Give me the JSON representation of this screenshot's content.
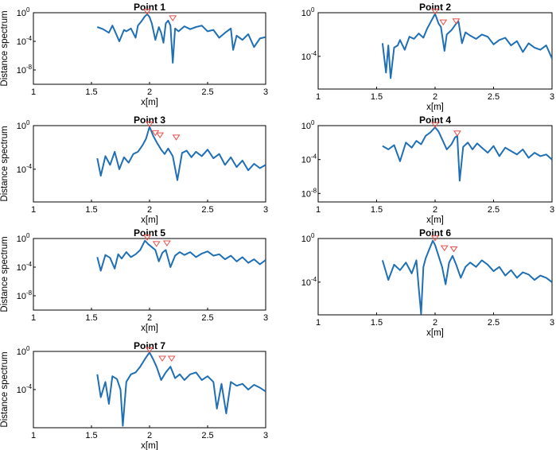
{
  "figure": {
    "series_color": "#1f6fb5",
    "marker_color": "#e8504a",
    "axis_color": "#000000"
  },
  "chart_data": [
    {
      "type": "line",
      "title": "Point 1",
      "xlabel": "x[m]",
      "ylabel": "Distance spectrum",
      "xlim": [
        1,
        3
      ],
      "xticks": [
        "1",
        "1.5",
        "2",
        "2.5",
        "3"
      ],
      "ylim": [
        -10,
        0
      ],
      "y_scale": "log",
      "yticks": [
        {
          "base": "10",
          "exp": "0",
          "value": 0
        },
        {
          "base": "10",
          "exp": "-4",
          "value": -4
        },
        {
          "base": "10",
          "exp": "-8",
          "value": -8
        }
      ],
      "grid": false,
      "series": [
        {
          "x": [
            1.55,
            1.6,
            1.65,
            1.68,
            1.7,
            1.74,
            1.78,
            1.8,
            1.84,
            1.88,
            1.9,
            1.93,
            1.96,
            1.98,
            2.0,
            2.02,
            2.05,
            2.08,
            2.1,
            2.12,
            2.14,
            2.16,
            2.18,
            2.2,
            2.22,
            2.25,
            2.3,
            2.35,
            2.4,
            2.45,
            2.5,
            2.55,
            2.6,
            2.65,
            2.7,
            2.72,
            2.75,
            2.8,
            2.85,
            2.9,
            2.95,
            3.0
          ],
          "y": [
            -2.0,
            -2.3,
            -2.8,
            -1.8,
            -2.5,
            -4.0,
            -2.4,
            -2.6,
            -2.2,
            -3.5,
            -1.8,
            -1.2,
            -0.5,
            -0.2,
            -0.6,
            -1.5,
            -3.8,
            -2.0,
            -2.8,
            -4.2,
            -1.5,
            -1.1,
            -1.8,
            -7.0,
            -2.2,
            -2.6,
            -1.9,
            -2.3,
            -2.0,
            -1.8,
            -2.6,
            -2.4,
            -3.5,
            -2.8,
            -2.2,
            -5.2,
            -3.2,
            -3.8,
            -3.0,
            -4.8,
            -3.6,
            -3.4
          ]
        }
      ],
      "peaks": [
        {
          "x": 1.98,
          "y": -0.2
        },
        {
          "x": 2.2,
          "y": -1.1
        }
      ]
    },
    {
      "type": "line",
      "title": "Point 2",
      "xlabel": "x[m]",
      "ylabel": "",
      "xlim": [
        1,
        3
      ],
      "xticks": [
        "1",
        "1.5",
        "2",
        "2.5",
        "3"
      ],
      "ylim": [
        -7,
        0
      ],
      "y_scale": "log",
      "yticks": [
        {
          "base": "10",
          "exp": "0",
          "value": 0
        },
        {
          "base": "10",
          "exp": "-4",
          "value": -4
        }
      ],
      "grid": false,
      "series": [
        {
          "x": [
            1.55,
            1.58,
            1.6,
            1.62,
            1.65,
            1.68,
            1.7,
            1.74,
            1.78,
            1.82,
            1.86,
            1.9,
            1.93,
            1.96,
            2.0,
            2.03,
            2.05,
            2.08,
            2.1,
            2.14,
            2.18,
            2.2,
            2.23,
            2.26,
            2.3,
            2.35,
            2.4,
            2.45,
            2.5,
            2.55,
            2.6,
            2.65,
            2.7,
            2.75,
            2.8,
            2.85,
            2.9,
            2.95,
            3.0
          ],
          "y": [
            -2.8,
            -5.5,
            -3.0,
            -6.0,
            -3.2,
            -3.0,
            -2.5,
            -3.4,
            -2.2,
            -2.4,
            -1.9,
            -2.3,
            -1.5,
            -0.9,
            -0.1,
            -1.0,
            -1.3,
            -3.5,
            -2.0,
            -1.6,
            -1.0,
            -0.8,
            -2.8,
            -1.8,
            -2.1,
            -2.4,
            -2.0,
            -2.2,
            -2.9,
            -2.5,
            -2.3,
            -3.0,
            -2.6,
            -3.6,
            -2.8,
            -3.2,
            -3.4,
            -3.0,
            -4.2
          ]
        }
      ],
      "peaks": [
        {
          "x": 2.0,
          "y": -0.1
        },
        {
          "x": 2.07,
          "y": -1.1
        },
        {
          "x": 2.18,
          "y": -1.0
        }
      ]
    },
    {
      "type": "line",
      "title": "Point 3",
      "xlabel": "x[m]",
      "ylabel": "Distance spectrum",
      "xlim": [
        1,
        3
      ],
      "xticks": [
        "1",
        "1.5",
        "2",
        "2.5",
        "3"
      ],
      "ylim": [
        -7,
        0
      ],
      "y_scale": "log",
      "yticks": [
        {
          "base": "10",
          "exp": "0",
          "value": 0
        },
        {
          "base": "10",
          "exp": "-4",
          "value": -4
        }
      ],
      "grid": false,
      "series": [
        {
          "x": [
            1.55,
            1.58,
            1.62,
            1.66,
            1.7,
            1.74,
            1.78,
            1.82,
            1.86,
            1.9,
            1.94,
            1.97,
            2.0,
            2.03,
            2.06,
            2.1,
            2.13,
            2.16,
            2.2,
            2.24,
            2.28,
            2.32,
            2.36,
            2.4,
            2.45,
            2.5,
            2.55,
            2.6,
            2.65,
            2.7,
            2.75,
            2.8,
            2.85,
            2.9,
            2.95,
            3.0
          ],
          "y": [
            -3.0,
            -4.6,
            -2.8,
            -3.6,
            -2.4,
            -4.0,
            -2.9,
            -3.4,
            -2.6,
            -2.4,
            -1.8,
            -1.2,
            -0.1,
            -0.9,
            -1.5,
            -2.2,
            -2.6,
            -2.1,
            -2.8,
            -5.0,
            -2.5,
            -2.3,
            -2.9,
            -2.4,
            -2.8,
            -2.2,
            -3.0,
            -2.6,
            -3.6,
            -2.9,
            -3.8,
            -3.2,
            -4.1,
            -3.5,
            -3.9,
            -3.6
          ]
        }
      ],
      "peaks": [
        {
          "x": 2.0,
          "y": -0.1
        },
        {
          "x": 2.05,
          "y": -0.9
        },
        {
          "x": 2.09,
          "y": -1.1
        },
        {
          "x": 2.23,
          "y": -1.3
        }
      ]
    },
    {
      "type": "line",
      "title": "Point 4",
      "xlabel": "x[m]",
      "ylabel": "",
      "xlim": [
        1,
        3
      ],
      "xticks": [
        "1",
        "1.5",
        "2",
        "2.5",
        "3"
      ],
      "ylim": [
        -9,
        0
      ],
      "y_scale": "log",
      "yticks": [
        {
          "base": "10",
          "exp": "0",
          "value": 0
        },
        {
          "base": "10",
          "exp": "-4",
          "value": -4
        },
        {
          "base": "10",
          "exp": "-8",
          "value": -8
        }
      ],
      "grid": false,
      "series": [
        {
          "x": [
            1.55,
            1.6,
            1.65,
            1.7,
            1.75,
            1.8,
            1.84,
            1.88,
            1.92,
            1.96,
            2.0,
            2.03,
            2.06,
            2.1,
            2.14,
            2.17,
            2.19,
            2.21,
            2.24,
            2.28,
            2.32,
            2.36,
            2.4,
            2.45,
            2.5,
            2.55,
            2.6,
            2.65,
            2.7,
            2.75,
            2.8,
            2.85,
            2.9,
            2.95,
            3.0
          ],
          "y": [
            -2.4,
            -2.8,
            -2.3,
            -4.2,
            -2.0,
            -2.6,
            -1.8,
            -2.2,
            -1.2,
            -0.8,
            -0.2,
            -0.7,
            -1.6,
            -2.8,
            -2.2,
            -1.4,
            -1.2,
            -6.5,
            -2.5,
            -2.0,
            -2.8,
            -2.1,
            -2.6,
            -3.2,
            -2.4,
            -3.6,
            -2.6,
            -3.0,
            -3.4,
            -2.8,
            -3.8,
            -3.2,
            -3.6,
            -3.4,
            -4.0
          ]
        }
      ],
      "peaks": [
        {
          "x": 2.0,
          "y": -0.2
        },
        {
          "x": 2.19,
          "y": -1.2
        }
      ]
    },
    {
      "type": "line",
      "title": "Point 5",
      "xlabel": "x[m]",
      "ylabel": "Distance spectrum",
      "xlim": [
        1,
        3
      ],
      "xticks": [
        "1",
        "1.5",
        "2",
        "2.5",
        "3"
      ],
      "ylim": [
        -10,
        0
      ],
      "y_scale": "log",
      "yticks": [
        {
          "base": "10",
          "exp": "0",
          "value": 0
        },
        {
          "base": "10",
          "exp": "-4",
          "value": -4
        },
        {
          "base": "10",
          "exp": "-8",
          "value": -8
        }
      ],
      "grid": false,
      "series": [
        {
          "x": [
            1.55,
            1.58,
            1.62,
            1.66,
            1.7,
            1.73,
            1.76,
            1.8,
            1.84,
            1.88,
            1.92,
            1.96,
            1.99,
            2.02,
            2.05,
            2.08,
            2.11,
            2.14,
            2.18,
            2.22,
            2.26,
            2.3,
            2.35,
            2.4,
            2.45,
            2.5,
            2.55,
            2.6,
            2.65,
            2.7,
            2.75,
            2.8,
            2.85,
            2.9,
            2.95,
            3.0
          ],
          "y": [
            -2.6,
            -4.5,
            -2.3,
            -2.7,
            -4.2,
            -2.2,
            -2.8,
            -1.9,
            -2.6,
            -2.2,
            -1.6,
            -0.3,
            -0.8,
            -1.2,
            -1.6,
            -3.2,
            -2.0,
            -1.6,
            -4.0,
            -2.4,
            -1.9,
            -2.3,
            -1.9,
            -2.6,
            -2.1,
            -1.8,
            -2.4,
            -2.2,
            -2.9,
            -2.4,
            -3.2,
            -2.6,
            -3.4,
            -2.9,
            -3.6,
            -3.0
          ]
        }
      ],
      "peaks": [
        {
          "x": 1.98,
          "y": -0.2
        },
        {
          "x": 2.06,
          "y": -1.1
        },
        {
          "x": 2.15,
          "y": -1.0
        }
      ]
    },
    {
      "type": "line",
      "title": "Point 6",
      "xlabel": "x[m]",
      "ylabel": "",
      "xlim": [
        1,
        3
      ],
      "xticks": [
        "1",
        "1.5",
        "2",
        "2.5",
        "3"
      ],
      "ylim": [
        -7,
        0
      ],
      "y_scale": "log",
      "yticks": [
        {
          "base": "10",
          "exp": "0",
          "value": 0
        },
        {
          "base": "10",
          "exp": "-4",
          "value": -4
        }
      ],
      "grid": false,
      "series": [
        {
          "x": [
            1.55,
            1.6,
            1.65,
            1.7,
            1.75,
            1.8,
            1.84,
            1.86,
            1.88,
            1.9,
            1.92,
            1.95,
            1.98,
            2.0,
            2.03,
            2.06,
            2.09,
            2.12,
            2.15,
            2.18,
            2.22,
            2.26,
            2.3,
            2.35,
            2.4,
            2.45,
            2.5,
            2.55,
            2.6,
            2.65,
            2.7,
            2.75,
            2.8,
            2.85,
            2.9,
            2.95,
            3.0
          ],
          "y": [
            -2.0,
            -3.8,
            -2.4,
            -2.9,
            -2.2,
            -3.2,
            -2.0,
            -4.5,
            -6.9,
            -2.6,
            -1.8,
            -1.0,
            -0.2,
            -0.6,
            -1.6,
            -2.6,
            -4.2,
            -2.2,
            -1.6,
            -2.4,
            -3.6,
            -2.6,
            -2.2,
            -2.6,
            -2.0,
            -2.4,
            -3.0,
            -2.6,
            -3.4,
            -2.9,
            -3.6,
            -3.1,
            -3.3,
            -3.8,
            -3.4,
            -3.6,
            -4.0
          ]
        }
      ],
      "peaks": [
        {
          "x": 2.0,
          "y": -0.2
        },
        {
          "x": 2.08,
          "y": -1.1
        },
        {
          "x": 2.16,
          "y": -1.2
        }
      ]
    },
    {
      "type": "line",
      "title": "Point 7",
      "xlabel": "x[m]",
      "ylabel": "Distance spectrum",
      "xlim": [
        1,
        3
      ],
      "xticks": [
        "1",
        "1.5",
        "2",
        "2.5",
        "3"
      ],
      "ylim": [
        -8,
        0
      ],
      "y_scale": "log",
      "yticks": [
        {
          "base": "10",
          "exp": "0",
          "value": 0
        },
        {
          "base": "10",
          "exp": "-4",
          "value": -4
        }
      ],
      "grid": false,
      "series": [
        {
          "x": [
            1.55,
            1.58,
            1.62,
            1.65,
            1.68,
            1.72,
            1.75,
            1.77,
            1.8,
            1.84,
            1.88,
            1.92,
            1.96,
            2.0,
            2.03,
            2.06,
            2.1,
            2.14,
            2.18,
            2.22,
            2.26,
            2.3,
            2.35,
            2.4,
            2.45,
            2.5,
            2.55,
            2.58,
            2.62,
            2.66,
            2.7,
            2.75,
            2.8,
            2.85,
            2.9,
            2.95,
            3.0
          ],
          "y": [
            -2.4,
            -4.8,
            -3.2,
            -5.5,
            -2.6,
            -2.9,
            -4.0,
            -7.8,
            -3.2,
            -2.4,
            -2.2,
            -1.6,
            -0.8,
            -0.1,
            -0.8,
            -1.6,
            -3.0,
            -2.2,
            -1.6,
            -2.8,
            -2.4,
            -3.0,
            -2.4,
            -2.2,
            -3.0,
            -2.6,
            -3.2,
            -6.0,
            -3.4,
            -6.5,
            -3.2,
            -3.6,
            -3.4,
            -4.0,
            -3.5,
            -3.8,
            -4.2
          ]
        }
      ],
      "peaks": [
        {
          "x": 2.0,
          "y": -0.1
        },
        {
          "x": 2.11,
          "y": -1.0
        },
        {
          "x": 2.19,
          "y": -1.0
        }
      ]
    }
  ]
}
